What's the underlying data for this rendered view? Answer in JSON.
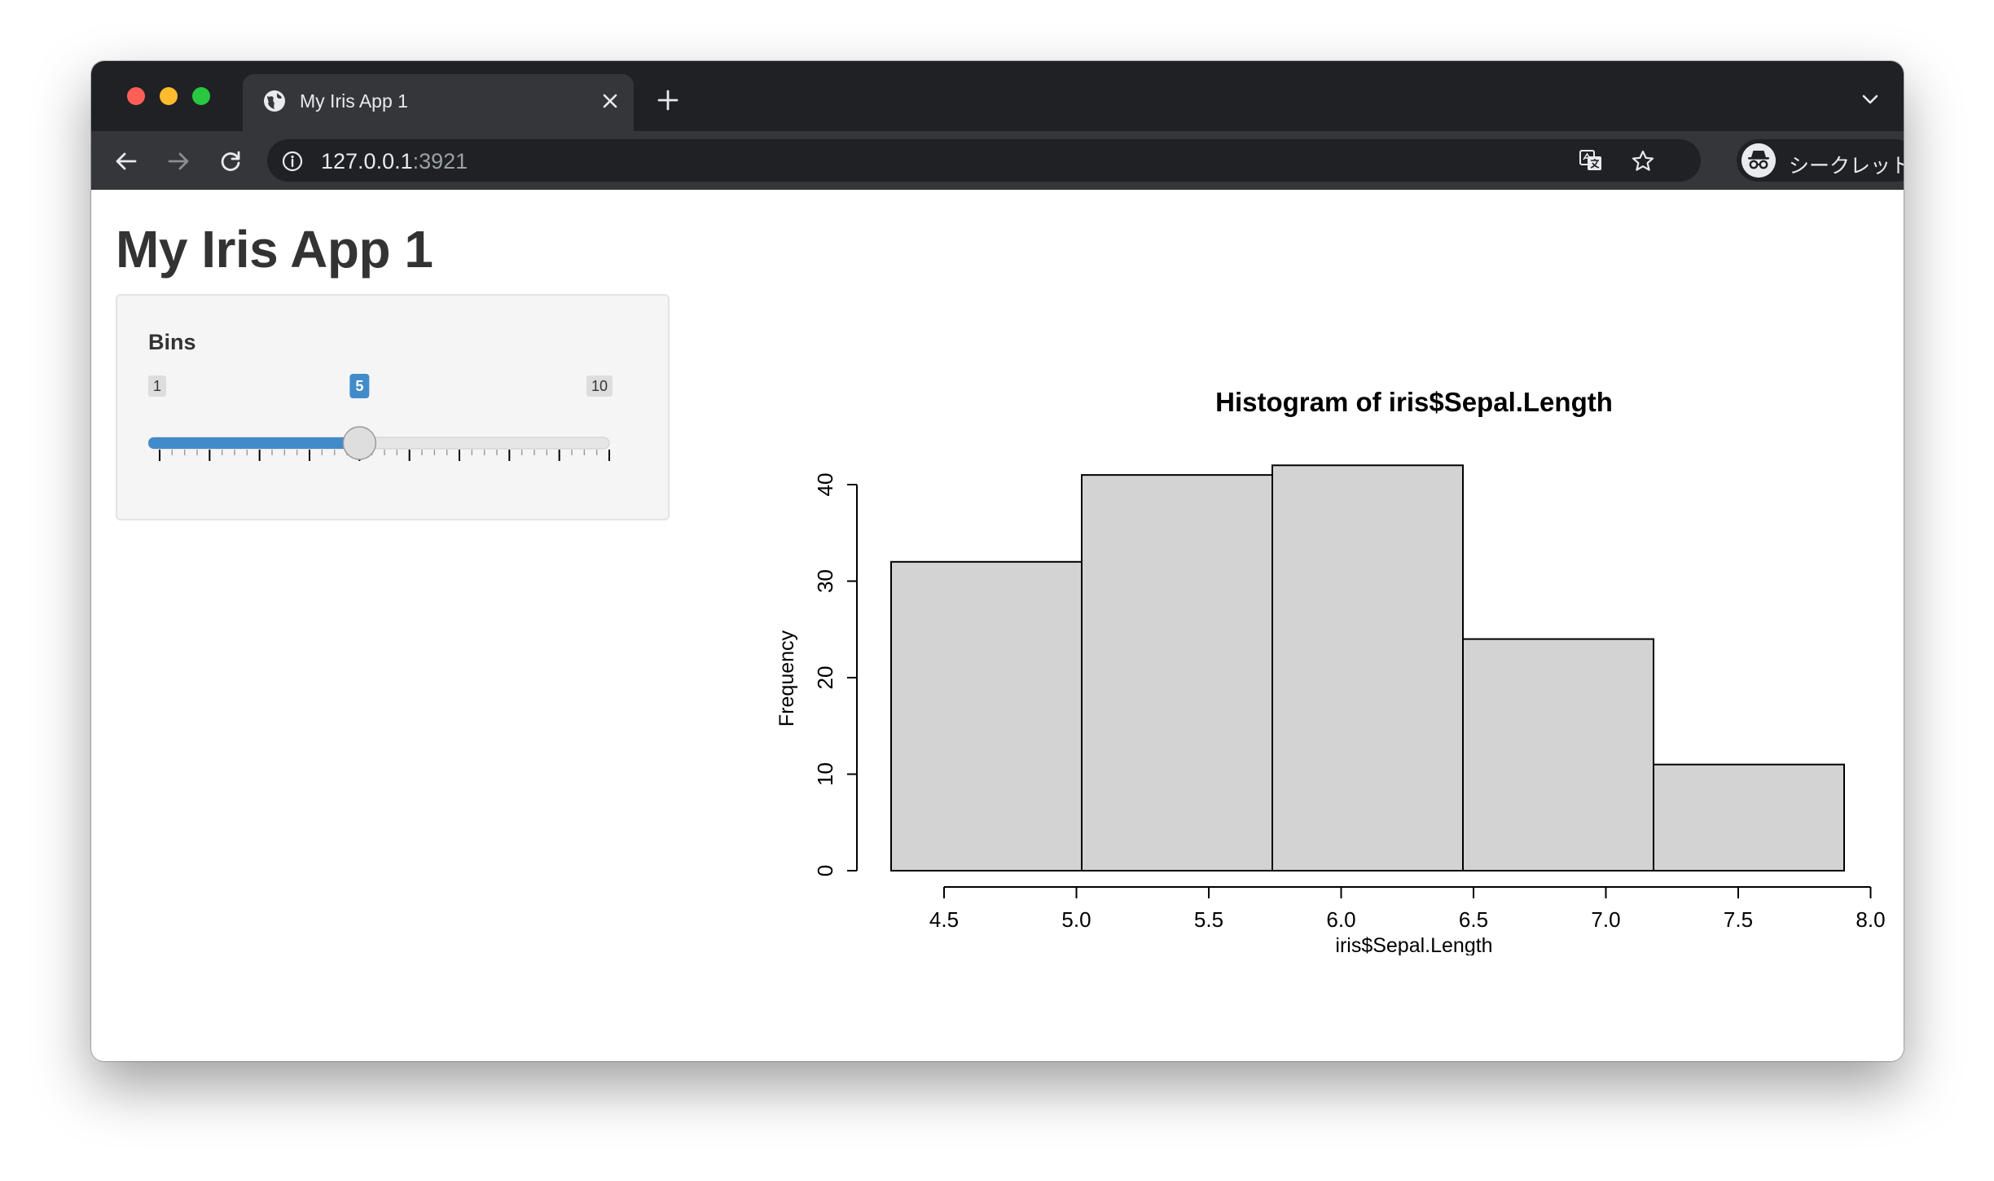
{
  "browser": {
    "tab_title": "My Iris App 1",
    "url_host": "127.0.0.1",
    "url_port": ":3921",
    "incognito_label": "シークレット",
    "icons": [
      "globe-icon",
      "close-icon",
      "plus-icon",
      "chevron-down-icon",
      "back-icon",
      "forward-icon",
      "reload-icon",
      "info-icon",
      "translate-icon",
      "star-icon",
      "incognito-icon",
      "kebab-menu-icon"
    ]
  },
  "app": {
    "title": "My Iris App 1"
  },
  "sidebar": {
    "bins_label": "Bins",
    "slider": {
      "min": 1,
      "max": 10,
      "value": 5,
      "min_label": "1",
      "max_label": "10",
      "value_label": "5",
      "ticks": [
        "1",
        "2",
        "3",
        "4",
        "5",
        "6",
        "7",
        "8",
        "9",
        "10"
      ],
      "accent_color": "#428bca"
    }
  },
  "chart_data": {
    "type": "bar",
    "title": "Histogram of iris$Sepal.Length",
    "xlabel": "iris$Sepal.Length",
    "ylabel": "Frequency",
    "bin_edges": [
      4.3,
      5.02,
      5.74,
      6.46,
      7.18,
      7.9
    ],
    "values": [
      32,
      41,
      42,
      24,
      11
    ],
    "x_ticks": [
      "4.5",
      "5.0",
      "5.5",
      "6.0",
      "6.5",
      "7.0",
      "7.5",
      "8.0"
    ],
    "y_ticks": [
      "0",
      "10",
      "20",
      "30",
      "40"
    ],
    "xlim": [
      4.5,
      8.0
    ],
    "ylim": [
      0,
      40
    ],
    "bar_color": "#d3d3d3",
    "grid": false
  }
}
